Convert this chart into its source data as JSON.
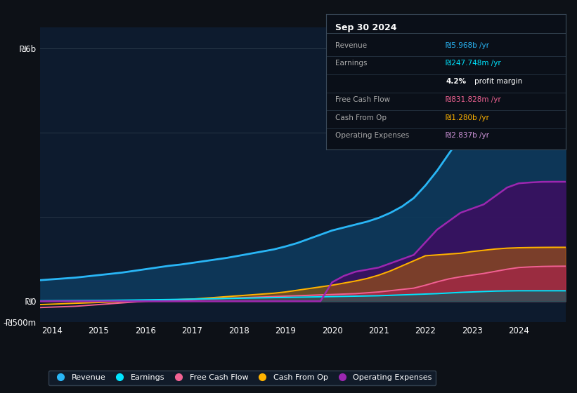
{
  "bg_color": "#0d1117",
  "plot_bg_color": "#0d1b2e",
  "grid_color": "#2a3a4a",
  "years": [
    2013.75,
    2014.0,
    2014.25,
    2014.5,
    2014.75,
    2015.0,
    2015.25,
    2015.5,
    2015.75,
    2016.0,
    2016.25,
    2016.5,
    2016.75,
    2017.0,
    2017.25,
    2017.5,
    2017.75,
    2018.0,
    2018.25,
    2018.5,
    2018.75,
    2019.0,
    2019.25,
    2019.5,
    2019.75,
    2020.0,
    2020.25,
    2020.5,
    2020.75,
    2021.0,
    2021.25,
    2021.5,
    2021.75,
    2022.0,
    2022.25,
    2022.5,
    2022.75,
    2023.0,
    2023.25,
    2023.5,
    2023.75,
    2024.0,
    2024.25,
    2024.5,
    2024.75,
    2025.0
  ],
  "revenue_m": [
    500,
    520,
    540,
    560,
    590,
    620,
    650,
    680,
    720,
    760,
    800,
    840,
    870,
    910,
    950,
    990,
    1030,
    1080,
    1130,
    1180,
    1230,
    1300,
    1380,
    1480,
    1580,
    1680,
    1750,
    1820,
    1890,
    1980,
    2100,
    2250,
    2450,
    2750,
    3100,
    3500,
    3900,
    4200,
    4500,
    4800,
    5100,
    5400,
    5600,
    5750,
    5900,
    5968
  ],
  "earnings_m": [
    10,
    12,
    14,
    16,
    18,
    20,
    22,
    25,
    28,
    32,
    36,
    40,
    45,
    50,
    55,
    60,
    65,
    70,
    75,
    80,
    85,
    90,
    95,
    100,
    105,
    110,
    115,
    120,
    125,
    130,
    140,
    150,
    160,
    170,
    180,
    195,
    210,
    220,
    230,
    240,
    245,
    248,
    248,
    248,
    248,
    247.748
  ],
  "fcf_m": [
    -150,
    -140,
    -130,
    -120,
    -100,
    -80,
    -60,
    -40,
    -20,
    0,
    10,
    20,
    30,
    40,
    50,
    60,
    70,
    80,
    90,
    100,
    110,
    120,
    130,
    140,
    150,
    160,
    170,
    180,
    200,
    220,
    250,
    280,
    310,
    380,
    460,
    530,
    580,
    620,
    660,
    710,
    760,
    800,
    815,
    825,
    830,
    831.828
  ],
  "cash_from_op_m": [
    -80,
    -70,
    -60,
    -50,
    -40,
    -30,
    -20,
    -10,
    0,
    10,
    20,
    30,
    40,
    50,
    70,
    90,
    110,
    130,
    150,
    170,
    190,
    220,
    260,
    300,
    340,
    380,
    430,
    480,
    540,
    620,
    720,
    840,
    960,
    1080,
    1100,
    1120,
    1140,
    1180,
    1210,
    1240,
    1260,
    1270,
    1275,
    1278,
    1280,
    1280
  ],
  "op_expenses_m": [
    0,
    0,
    0,
    0,
    0,
    0,
    0,
    0,
    0,
    0,
    0,
    0,
    0,
    0,
    0,
    0,
    0,
    0,
    0,
    0,
    0,
    0,
    0,
    0,
    0,
    450,
    600,
    700,
    750,
    800,
    900,
    1000,
    1100,
    1400,
    1700,
    1900,
    2100,
    2200,
    2300,
    2500,
    2700,
    2800,
    2820,
    2835,
    2837,
    2837
  ],
  "revenue_color": "#29b6f6",
  "earnings_color": "#00e5ff",
  "fcf_color": "#f06292",
  "cash_op_color": "#ffb300",
  "op_exp_color": "#9c27b0",
  "revenue_fill": "#0d3a5c",
  "op_exp_fill": "#3a1060",
  "fcf_fill": "#7b1fa2",
  "cash_op_fill": "#b36200",
  "earnings_fill": "#006064",
  "ylim_min_m": -500,
  "ylim_max_m": 6500,
  "ylabel_6b": "₪6b",
  "ylabel_0": "₪0",
  "ylabel_neg500m": "-₪500m",
  "xtick_years": [
    2014,
    2015,
    2016,
    2017,
    2018,
    2019,
    2020,
    2021,
    2022,
    2023,
    2024
  ],
  "xlabel_labels": [
    "2014",
    "2015",
    "2016",
    "2017",
    "2018",
    "2019",
    "2020",
    "2021",
    "2022",
    "2023",
    "2024"
  ],
  "info_box_title": "Sep 30 2024",
  "info_rows": [
    {
      "label": "Revenue",
      "value": "₪5.968b /yr",
      "vcolor": "#29b6f6"
    },
    {
      "label": "Earnings",
      "value": "₪247.748m /yr",
      "vcolor": "#00e5ff"
    },
    {
      "label": "",
      "value": "4.2% profit margin",
      "vcolor": "#ffffff",
      "bold_prefix": "4.2%",
      "suffix": " profit margin"
    },
    {
      "label": "Free Cash Flow",
      "value": "₪831.828m /yr",
      "vcolor": "#f06292"
    },
    {
      "label": "Cash From Op",
      "value": "₪1.280b /yr",
      "vcolor": "#ffb300"
    },
    {
      "label": "Operating Expenses",
      "value": "₪2.837b /yr",
      "vcolor": "#ce93d8"
    }
  ],
  "legend_items": [
    {
      "label": "Revenue",
      "color": "#29b6f6"
    },
    {
      "label": "Earnings",
      "color": "#00e5ff"
    },
    {
      "label": "Free Cash Flow",
      "color": "#f06292"
    },
    {
      "label": "Cash From Op",
      "color": "#ffb300"
    },
    {
      "label": "Operating Expenses",
      "color": "#9c27b0"
    }
  ]
}
